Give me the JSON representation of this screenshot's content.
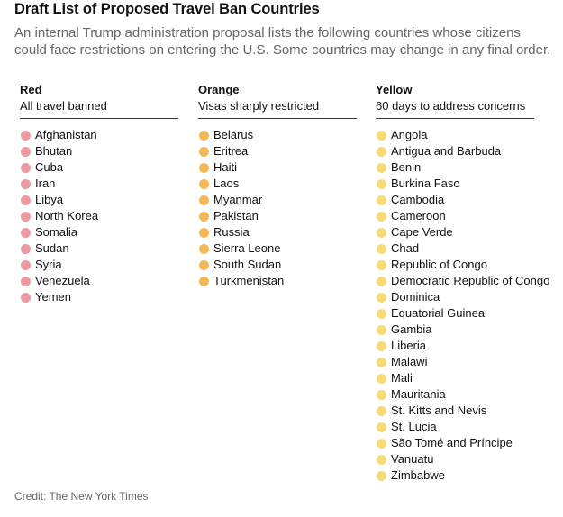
{
  "title": "Draft List of Proposed Travel Ban Countries",
  "subtitle": "An internal Trump administration proposal lists the following countries whose citizens could face restrictions on entering the U.S. Some countries may change in any final order.",
  "columns": [
    {
      "heading": "Red",
      "description": "All travel banned",
      "color": "#ec9a9f",
      "countries": [
        "Afghanistan",
        "Bhutan",
        "Cuba",
        "Iran",
        "Libya",
        "North Korea",
        "Somalia",
        "Sudan",
        "Syria",
        "Venezuela",
        "Yemen"
      ]
    },
    {
      "heading": "Orange",
      "description": "Visas sharply restricted",
      "color": "#f7b852",
      "countries": [
        "Belarus",
        "Eritrea",
        "Haiti",
        "Laos",
        "Myanmar",
        "Pakistan",
        "Russia",
        "Sierra Leone",
        "South Sudan",
        "Turkmenistan"
      ]
    },
    {
      "heading": "Yellow",
      "description": "60 days to address concerns",
      "color": "#f5dc7a",
      "countries": [
        "Angola",
        "Antigua and Barbuda",
        "Benin",
        "Burkina Faso",
        "Cambodia",
        "Cameroon",
        "Cape Verde",
        "Chad",
        "Republic of Congo",
        "Democratic Republic of Congo",
        "Dominica",
        "Equatorial Guinea",
        "Gambia",
        "Liberia",
        "Malawi",
        "Mali",
        "Mauritania",
        "St. Kitts and Nevis",
        "St. Lucia",
        "São Tomé and Príncipe",
        "Vanuatu",
        "Zimbabwe"
      ]
    }
  ],
  "credit": "Credit: The New York Times"
}
